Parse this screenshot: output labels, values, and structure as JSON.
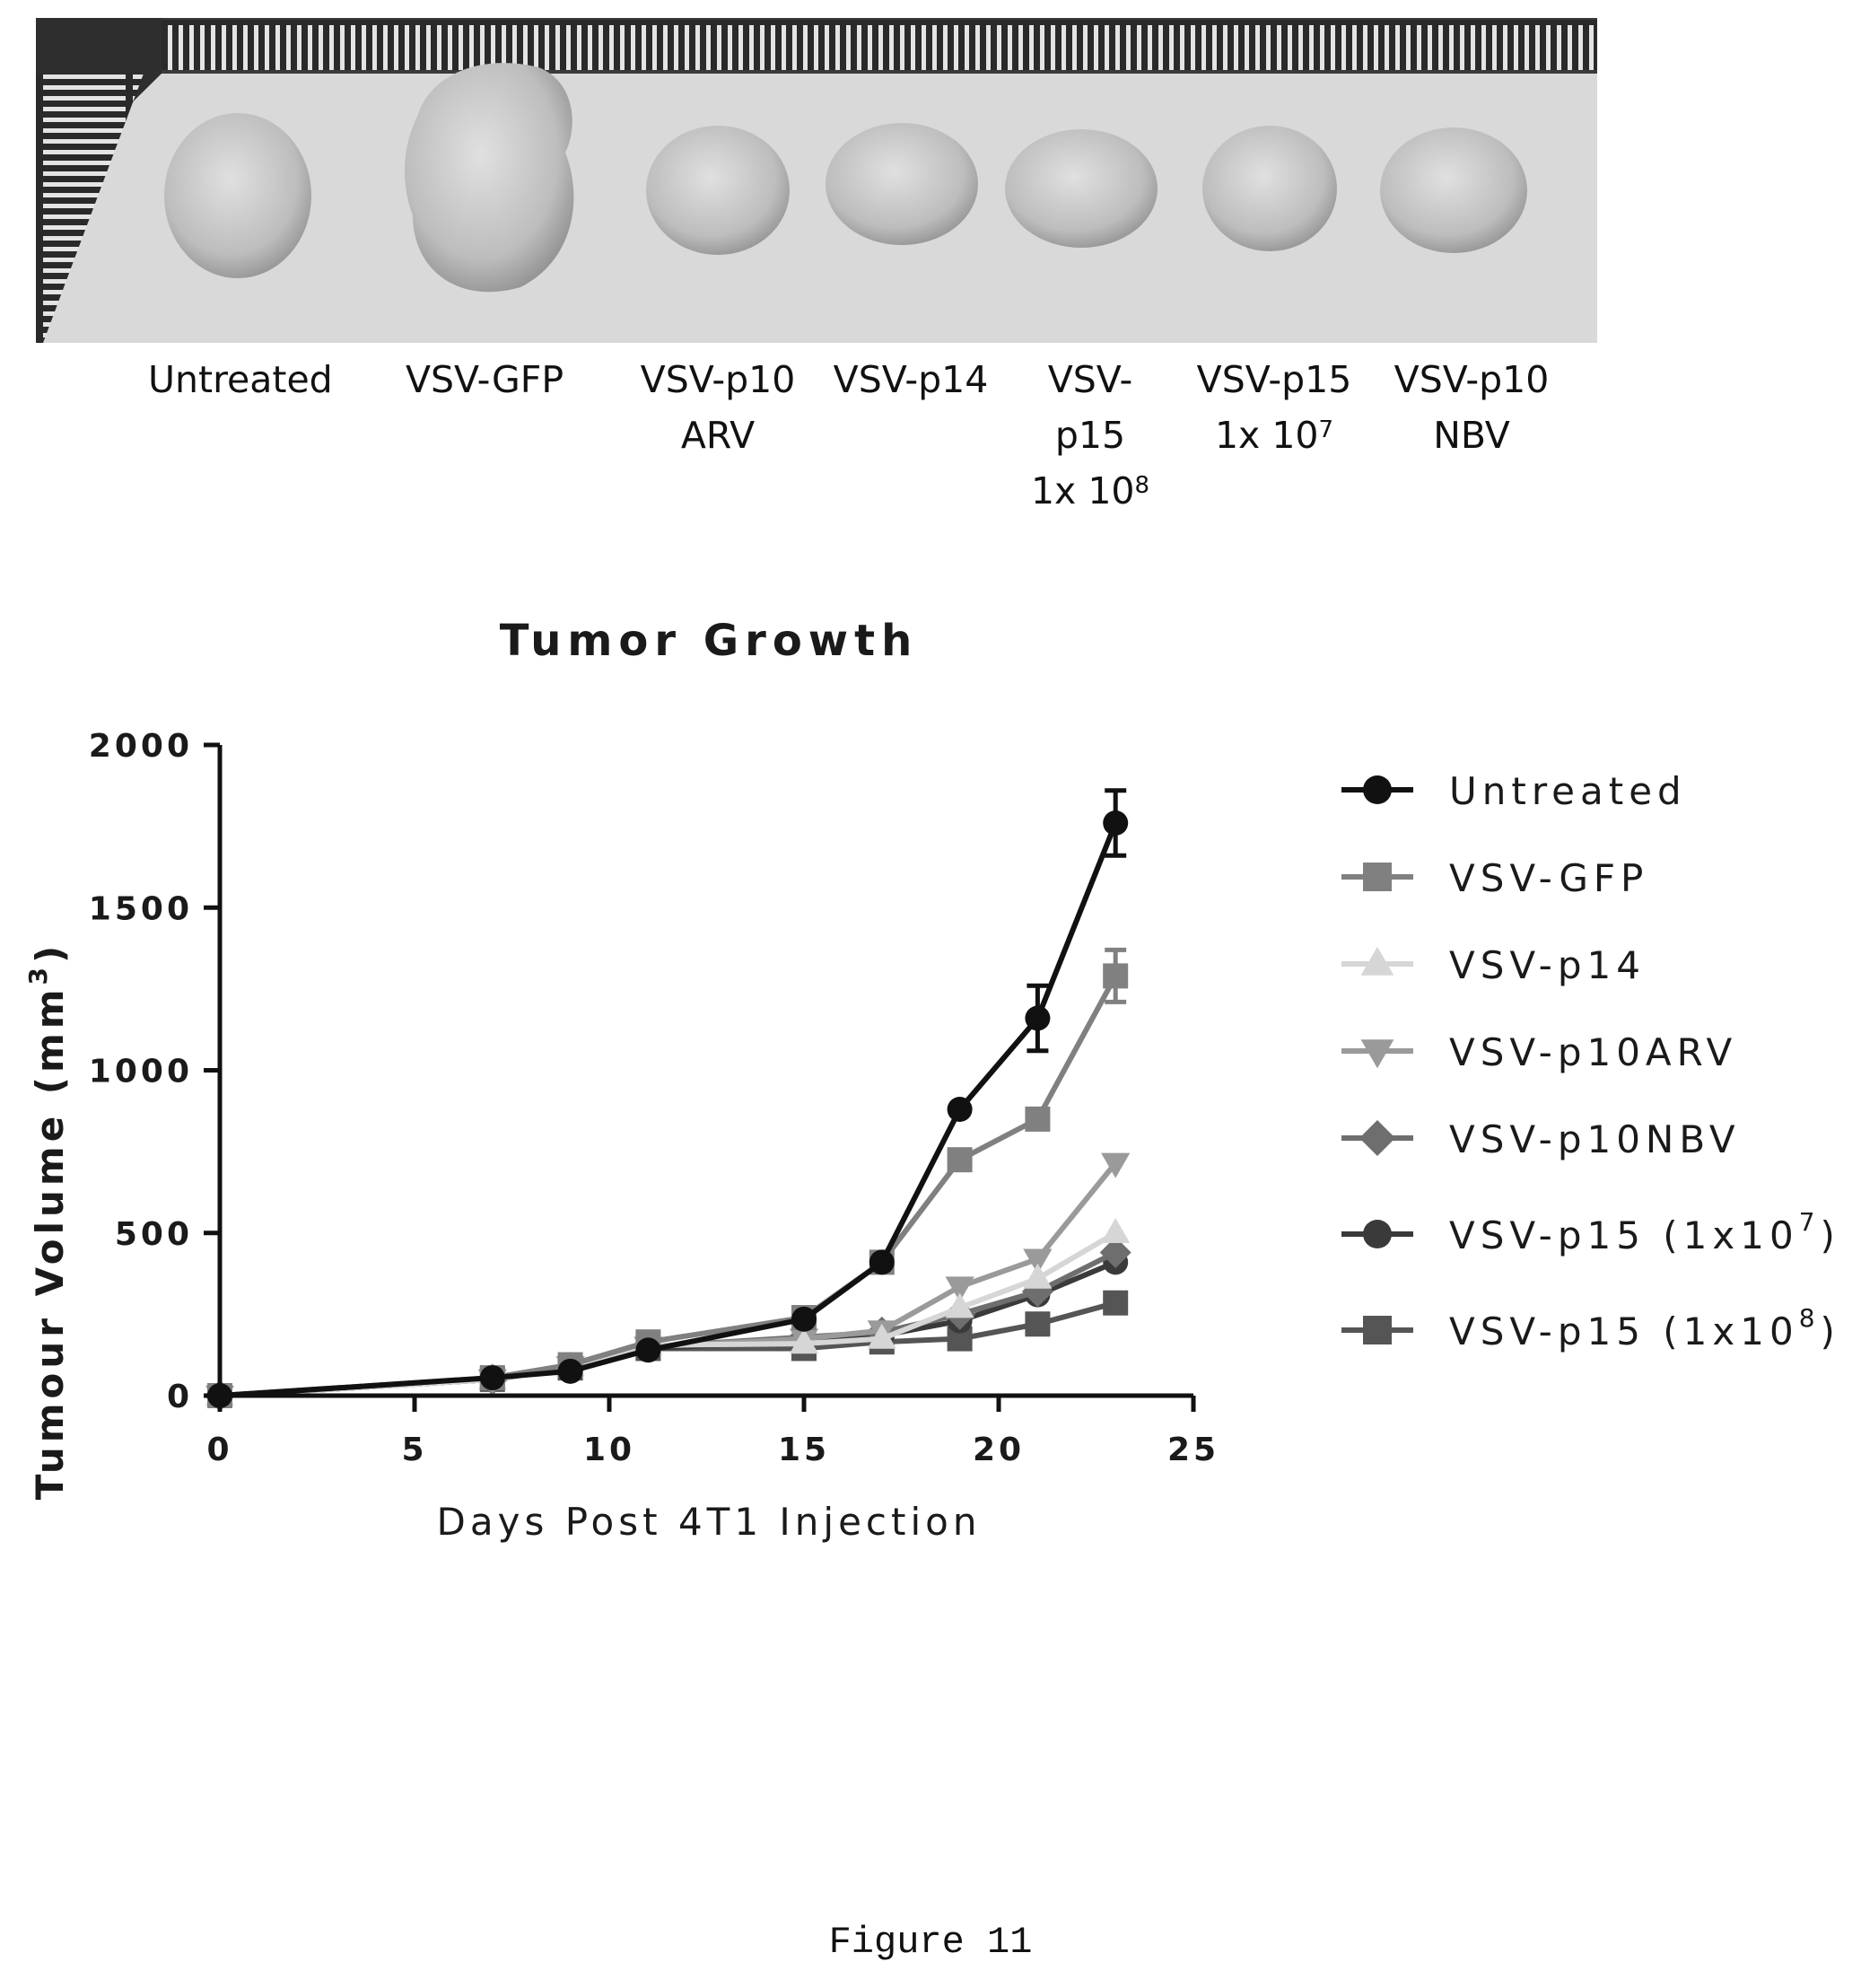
{
  "photo_labels": [
    {
      "lines": [
        "Untreated"
      ]
    },
    {
      "lines": [
        "VSV-GFP"
      ]
    },
    {
      "lines": [
        "VSV-p10",
        "ARV"
      ]
    },
    {
      "lines": [
        "VSV-p14"
      ]
    },
    {
      "lines": [
        "VSV-",
        "p15",
        "1x 10"
      ],
      "sup": "8"
    },
    {
      "lines": [
        "VSV-p15",
        "1x 10"
      ],
      "sup": "7"
    },
    {
      "lines": [
        "VSV-p10",
        "NBV"
      ]
    }
  ],
  "caption": "Figure 11",
  "chart_data": {
    "type": "line",
    "title": "Tumor Growth",
    "xlabel": "Days Post 4T1 Injection",
    "ylabel": "Tumour Volume (mm",
    "ylabel_sup": "3",
    "ylabel_close": ")",
    "xlim": [
      0,
      25
    ],
    "ylim": [
      0,
      2000
    ],
    "xticks": [
      0,
      5,
      10,
      15,
      20,
      25
    ],
    "yticks": [
      0,
      500,
      1000,
      1500,
      2000
    ],
    "grid": false,
    "legend_position": "right",
    "x": [
      0,
      7,
      9,
      11,
      15,
      17,
      19,
      21,
      23
    ],
    "series": [
      {
        "name": "Untreated",
        "marker": "circle",
        "color": "#111111",
        "values": [
          0,
          55,
          75,
          140,
          235,
          410,
          880,
          1160,
          1760
        ],
        "error": [
          0,
          0,
          0,
          0,
          0,
          0,
          0,
          100,
          100
        ]
      },
      {
        "name": "VSV-GFP",
        "marker": "square",
        "color": "#808080",
        "values": [
          0,
          55,
          95,
          165,
          240,
          410,
          725,
          850,
          1290
        ],
        "error": [
          0,
          0,
          0,
          0,
          0,
          0,
          0,
          0,
          80
        ]
      },
      {
        "name": "VSV-p14",
        "marker": "triangle-up",
        "color": "#d6d6d6",
        "values": [
          0,
          50,
          90,
          155,
          160,
          175,
          270,
          360,
          500
        ],
        "error": [
          0,
          0,
          0,
          0,
          0,
          0,
          0,
          0,
          0
        ]
      },
      {
        "name": "VSV-p10ARV",
        "marker": "triangle-down",
        "color": "#9a9a9a",
        "values": [
          0,
          50,
          90,
          150,
          175,
          200,
          335,
          420,
          715
        ],
        "error": [
          0,
          0,
          0,
          0,
          0,
          0,
          0,
          0,
          0
        ]
      },
      {
        "name": "VSV-p10NBV",
        "marker": "diamond",
        "color": "#6e6e6e",
        "values": [
          0,
          50,
          85,
          150,
          180,
          195,
          250,
          320,
          440
        ],
        "error": [
          0,
          0,
          0,
          0,
          0,
          0,
          0,
          0,
          0
        ]
      },
      {
        "name": "VSV-p15 (1x10",
        "name_sup": "7",
        "name_close": ")",
        "marker": "circle",
        "color": "#3a3a3a",
        "values": [
          0,
          50,
          85,
          145,
          170,
          185,
          230,
          310,
          410
        ],
        "error": [
          0,
          0,
          0,
          0,
          0,
          0,
          0,
          0,
          0
        ]
      },
      {
        "name": "VSV-p15 (1x10",
        "name_sup": "8",
        "name_close": ")",
        "marker": "square",
        "color": "#555555",
        "values": [
          0,
          50,
          85,
          145,
          145,
          165,
          175,
          220,
          285
        ],
        "error": [
          0,
          0,
          0,
          0,
          0,
          0,
          0,
          0,
          0
        ]
      }
    ]
  }
}
